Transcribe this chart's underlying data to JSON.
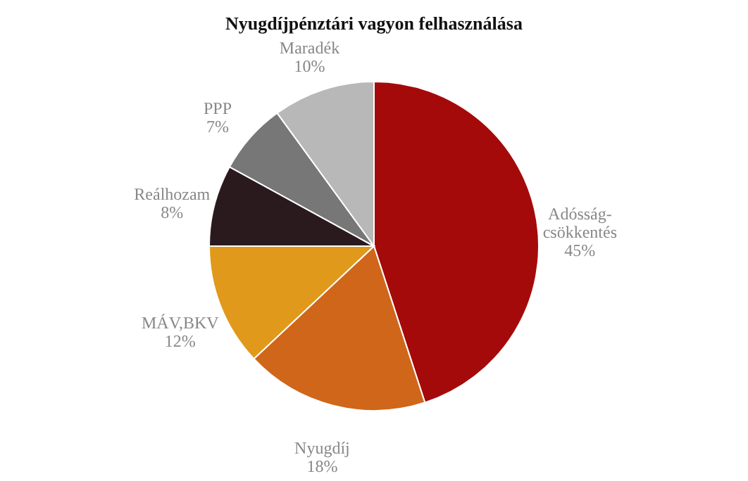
{
  "chart_data": {
    "type": "pie",
    "title": "Nyugdíjpénztári vagyon felhasználása",
    "categories": [
      "Adósság-csökkentés",
      "Nyugdíj",
      "MÁV,BKV",
      "Reálhozam",
      "PPP",
      "Maradék"
    ],
    "values": [
      45,
      18,
      12,
      8,
      7,
      10
    ],
    "value_labels": [
      "45%",
      "18%",
      "12%",
      "8%",
      "7%",
      "10%"
    ],
    "colors": [
      "#a50a0a",
      "#d0661a",
      "#e0991a",
      "#2a1a1e",
      "#777777",
      "#b8b8b8"
    ]
  }
}
